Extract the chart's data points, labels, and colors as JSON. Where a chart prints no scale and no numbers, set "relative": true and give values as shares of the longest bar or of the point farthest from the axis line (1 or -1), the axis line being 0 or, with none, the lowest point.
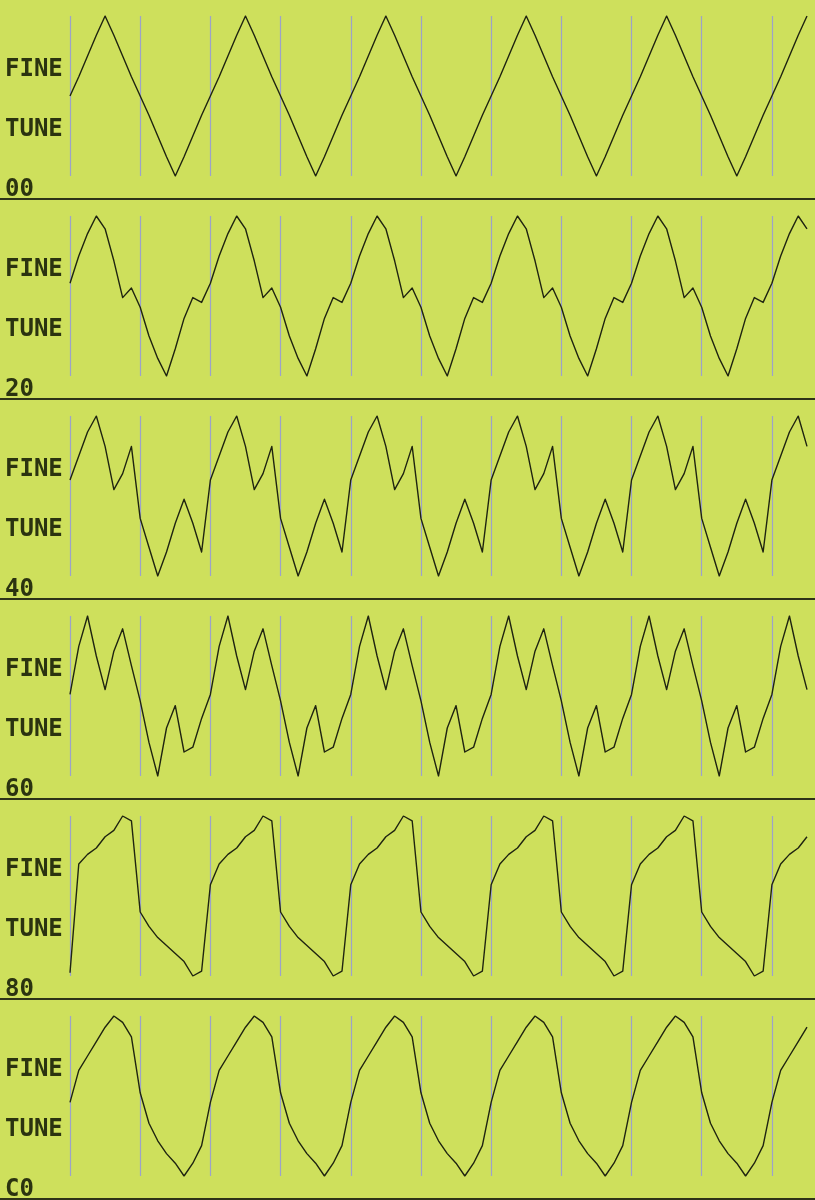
{
  "chart_data": [
    {
      "type": "line",
      "title": "FINE TUNE",
      "subtitle": "00",
      "relative": true,
      "grid": "x",
      "color": "#1f2410",
      "categories": [
        null,
        null,
        null,
        null,
        null,
        null,
        null,
        null,
        null,
        null,
        null,
        null,
        null,
        null,
        null,
        null,
        null,
        null,
        null,
        null,
        null,
        null,
        null,
        null,
        null,
        null,
        null,
        null,
        null,
        null,
        null,
        null,
        null,
        null,
        null,
        null,
        null,
        null,
        null,
        null,
        null,
        null,
        null,
        null,
        null,
        null,
        null,
        null,
        null,
        null,
        null,
        null,
        null,
        null,
        null,
        null,
        null,
        null,
        null,
        null,
        null,
        null,
        null,
        null,
        null,
        null,
        null,
        null,
        null,
        null,
        null,
        null,
        null,
        null,
        null,
        null,
        null,
        null,
        null,
        null,
        null,
        null,
        null,
        null,
        null
      ],
      "values": [
        0.5,
        0.62,
        0.75,
        0.88,
        1,
        0.88,
        0.75,
        0.62,
        0.5,
        0.38,
        0.25,
        0.12,
        0,
        0.12,
        0.25,
        0.38,
        0.5,
        0.62,
        0.75,
        0.88,
        1,
        0.88,
        0.75,
        0.62,
        0.5,
        0.38,
        0.25,
        0.12,
        0,
        0.12,
        0.25,
        0.38,
        0.5,
        0.62,
        0.75,
        0.88,
        1,
        0.88,
        0.75,
        0.62,
        0.5,
        0.38,
        0.25,
        0.12,
        0,
        0.12,
        0.25,
        0.38,
        0.5,
        0.62,
        0.75,
        0.88,
        1,
        0.88,
        0.75,
        0.62,
        0.5,
        0.38,
        0.25,
        0.12,
        0,
        0.12,
        0.25,
        0.38,
        0.5,
        0.62,
        0.75,
        0.88,
        1,
        0.88,
        0.75,
        0.62,
        0.5,
        0.38,
        0.25,
        0.12,
        0,
        0.12,
        0.25,
        0.38,
        0.5,
        0.62,
        0.75,
        0.88,
        1
      ]
    },
    {
      "type": "line",
      "title": "FINE TUNE",
      "subtitle": "20",
      "relative": true,
      "grid": "x",
      "color": "#1f2410",
      "categories": [
        null,
        null,
        null,
        null,
        null,
        null,
        null,
        null,
        null,
        null,
        null,
        null,
        null,
        null,
        null,
        null,
        null,
        null,
        null,
        null,
        null,
        null,
        null,
        null,
        null,
        null,
        null,
        null,
        null,
        null,
        null,
        null,
        null,
        null,
        null,
        null,
        null,
        null,
        null,
        null,
        null,
        null,
        null,
        null,
        null,
        null,
        null,
        null,
        null,
        null,
        null,
        null,
        null,
        null,
        null,
        null,
        null,
        null,
        null,
        null,
        null,
        null,
        null,
        null,
        null,
        null,
        null,
        null,
        null,
        null,
        null,
        null,
        null,
        null,
        null,
        null,
        null,
        null,
        null,
        null,
        null,
        null,
        null,
        null,
        null
      ],
      "values": [
        0.58,
        0.75,
        0.89,
        1,
        0.92,
        0.72,
        0.49,
        0.55,
        0.43,
        0.25,
        0.11,
        0,
        0.17,
        0.36,
        0.49,
        0.46,
        0.58,
        0.75,
        0.89,
        1,
        0.92,
        0.72,
        0.49,
        0.55,
        0.43,
        0.25,
        0.11,
        0,
        0.17,
        0.36,
        0.49,
        0.46,
        0.58,
        0.75,
        0.89,
        1,
        0.92,
        0.72,
        0.49,
        0.55,
        0.43,
        0.25,
        0.11,
        0,
        0.17,
        0.36,
        0.49,
        0.46,
        0.58,
        0.75,
        0.89,
        1,
        0.92,
        0.72,
        0.49,
        0.55,
        0.43,
        0.25,
        0.11,
        0,
        0.17,
        0.36,
        0.49,
        0.46,
        0.58,
        0.75,
        0.89,
        1,
        0.92,
        0.72,
        0.49,
        0.55,
        0.43,
        0.25,
        0.11,
        0,
        0.17,
        0.36,
        0.49,
        0.46,
        0.58,
        0.75,
        0.89,
        1,
        0.92
      ]
    },
    {
      "type": "line",
      "title": "FINE TUNE",
      "subtitle": "40",
      "relative": true,
      "grid": "x",
      "color": "#1f2410",
      "categories": [
        null,
        null,
        null,
        null,
        null,
        null,
        null,
        null,
        null,
        null,
        null,
        null,
        null,
        null,
        null,
        null,
        null,
        null,
        null,
        null,
        null,
        null,
        null,
        null,
        null,
        null,
        null,
        null,
        null,
        null,
        null,
        null,
        null,
        null,
        null,
        null,
        null,
        null,
        null,
        null,
        null,
        null,
        null,
        null,
        null,
        null,
        null,
        null,
        null,
        null,
        null,
        null,
        null,
        null,
        null,
        null,
        null,
        null,
        null,
        null,
        null,
        null,
        null,
        null,
        null,
        null,
        null,
        null,
        null,
        null,
        null,
        null,
        null,
        null,
        null,
        null,
        null,
        null,
        null,
        null,
        null,
        null,
        null,
        null,
        null
      ],
      "values": [
        0.6,
        0.75,
        0.9,
        1,
        0.81,
        0.54,
        0.64,
        0.81,
        0.36,
        0.18,
        0,
        0.15,
        0.33,
        0.48,
        0.33,
        0.15,
        0.6,
        0.75,
        0.9,
        1,
        0.81,
        0.54,
        0.64,
        0.81,
        0.36,
        0.18,
        0,
        0.15,
        0.33,
        0.48,
        0.33,
        0.15,
        0.6,
        0.75,
        0.9,
        1,
        0.81,
        0.54,
        0.64,
        0.81,
        0.36,
        0.18,
        0,
        0.15,
        0.33,
        0.48,
        0.33,
        0.15,
        0.6,
        0.75,
        0.9,
        1,
        0.81,
        0.54,
        0.64,
        0.81,
        0.36,
        0.18,
        0,
        0.15,
        0.33,
        0.48,
        0.33,
        0.15,
        0.6,
        0.75,
        0.9,
        1,
        0.81,
        0.54,
        0.64,
        0.81,
        0.36,
        0.18,
        0,
        0.15,
        0.33,
        0.48,
        0.33,
        0.15,
        0.6,
        0.75,
        0.9,
        1,
        0.81
      ]
    },
    {
      "type": "line",
      "title": "FINE TUNE",
      "subtitle": "60",
      "relative": true,
      "grid": "x",
      "color": "#1f2410",
      "categories": [
        null,
        null,
        null,
        null,
        null,
        null,
        null,
        null,
        null,
        null,
        null,
        null,
        null,
        null,
        null,
        null,
        null,
        null,
        null,
        null,
        null,
        null,
        null,
        null,
        null,
        null,
        null,
        null,
        null,
        null,
        null,
        null,
        null,
        null,
        null,
        null,
        null,
        null,
        null,
        null,
        null,
        null,
        null,
        null,
        null,
        null,
        null,
        null,
        null,
        null,
        null,
        null,
        null,
        null,
        null,
        null,
        null,
        null,
        null,
        null,
        null,
        null,
        null,
        null,
        null,
        null,
        null,
        null,
        null,
        null,
        null,
        null,
        null,
        null,
        null,
        null,
        null,
        null,
        null,
        null,
        null,
        null,
        null,
        null,
        null
      ],
      "values": [
        0.51,
        0.81,
        1,
        0.75,
        0.54,
        0.78,
        0.92,
        0.69,
        0.47,
        0.21,
        0,
        0.3,
        0.44,
        0.15,
        0.18,
        0.36,
        0.51,
        0.81,
        1,
        0.75,
        0.54,
        0.78,
        0.92,
        0.69,
        0.47,
        0.21,
        0,
        0.3,
        0.44,
        0.15,
        0.18,
        0.36,
        0.51,
        0.81,
        1,
        0.75,
        0.54,
        0.78,
        0.92,
        0.69,
        0.47,
        0.21,
        0,
        0.3,
        0.44,
        0.15,
        0.18,
        0.36,
        0.51,
        0.81,
        1,
        0.75,
        0.54,
        0.78,
        0.92,
        0.69,
        0.47,
        0.21,
        0,
        0.3,
        0.44,
        0.15,
        0.18,
        0.36,
        0.51,
        0.81,
        1,
        0.75,
        0.54,
        0.78,
        0.92,
        0.69,
        0.47,
        0.21,
        0,
        0.3,
        0.44,
        0.15,
        0.18,
        0.36,
        0.51,
        0.81,
        1,
        0.75,
        0.54
      ]
    },
    {
      "type": "line",
      "title": "FINE TUNE",
      "subtitle": "80",
      "relative": true,
      "grid": "x",
      "color": "#1f2410",
      "categories": [
        null,
        null,
        null,
        null,
        null,
        null,
        null,
        null,
        null,
        null,
        null,
        null,
        null,
        null,
        null,
        null,
        null,
        null,
        null,
        null,
        null,
        null,
        null,
        null,
        null,
        null,
        null,
        null,
        null,
        null,
        null,
        null,
        null,
        null,
        null,
        null,
        null,
        null,
        null,
        null,
        null,
        null,
        null,
        null,
        null,
        null,
        null,
        null,
        null,
        null,
        null,
        null,
        null,
        null,
        null,
        null,
        null,
        null,
        null,
        null,
        null,
        null,
        null,
        null,
        null,
        null,
        null,
        null,
        null,
        null,
        null,
        null,
        null,
        null,
        null,
        null,
        null,
        null,
        null,
        null,
        null,
        null,
        null,
        null,
        null
      ],
      "values": [
        0.02,
        0.7,
        0.76,
        0.8,
        0.87,
        0.91,
        1,
        0.97,
        0.4,
        0.31,
        0.24,
        0.19,
        0.14,
        0.09,
        0,
        0.03,
        0.57,
        0.7,
        0.76,
        0.8,
        0.87,
        0.91,
        1,
        0.97,
        0.4,
        0.31,
        0.24,
        0.19,
        0.14,
        0.09,
        0,
        0.03,
        0.57,
        0.7,
        0.76,
        0.8,
        0.87,
        0.91,
        1,
        0.97,
        0.4,
        0.31,
        0.24,
        0.19,
        0.14,
        0.09,
        0,
        0.03,
        0.57,
        0.7,
        0.76,
        0.8,
        0.87,
        0.91,
        1,
        0.97,
        0.4,
        0.31,
        0.24,
        0.19,
        0.14,
        0.09,
        0,
        0.03,
        0.57,
        0.7,
        0.76,
        0.8,
        0.87,
        0.91,
        1,
        0.97,
        0.4,
        0.31,
        0.24,
        0.19,
        0.14,
        0.09,
        0,
        0.03,
        0.57,
        0.7,
        0.76,
        0.8,
        0.87
      ]
    },
    {
      "type": "line",
      "title": "FINE TUNE",
      "subtitle": "C0",
      "relative": true,
      "grid": "x",
      "color": "#1f2410",
      "categories": [
        null,
        null,
        null,
        null,
        null,
        null,
        null,
        null,
        null,
        null,
        null,
        null,
        null,
        null,
        null,
        null,
        null,
        null,
        null,
        null,
        null,
        null,
        null,
        null,
        null,
        null,
        null,
        null,
        null,
        null,
        null,
        null,
        null,
        null,
        null,
        null,
        null,
        null,
        null,
        null,
        null,
        null,
        null,
        null,
        null,
        null,
        null,
        null,
        null,
        null,
        null,
        null,
        null,
        null,
        null,
        null,
        null,
        null,
        null,
        null,
        null,
        null,
        null,
        null,
        null,
        null,
        null,
        null,
        null,
        null,
        null,
        null,
        null,
        null,
        null,
        null,
        null,
        null,
        null,
        null,
        null,
        null,
        null,
        null,
        null
      ],
      "values": [
        0.46,
        0.66,
        0.75,
        0.84,
        0.93,
        1,
        0.96,
        0.87,
        0.52,
        0.33,
        0.22,
        0.14,
        0.08,
        0,
        0.08,
        0.19,
        0.46,
        0.66,
        0.75,
        0.84,
        0.93,
        1,
        0.96,
        0.87,
        0.52,
        0.33,
        0.22,
        0.14,
        0.08,
        0,
        0.08,
        0.19,
        0.46,
        0.66,
        0.75,
        0.84,
        0.93,
        1,
        0.96,
        0.87,
        0.52,
        0.33,
        0.22,
        0.14,
        0.08,
        0,
        0.08,
        0.19,
        0.46,
        0.66,
        0.75,
        0.84,
        0.93,
        1,
        0.96,
        0.87,
        0.52,
        0.33,
        0.22,
        0.14,
        0.08,
        0,
        0.08,
        0.19,
        0.46,
        0.66,
        0.75,
        0.84,
        0.93,
        1,
        0.96,
        0.87,
        0.52,
        0.33,
        0.22,
        0.14,
        0.08,
        0,
        0.08,
        0.19,
        0.46,
        0.66,
        0.75,
        0.84,
        0.93
      ]
    }
  ]
}
